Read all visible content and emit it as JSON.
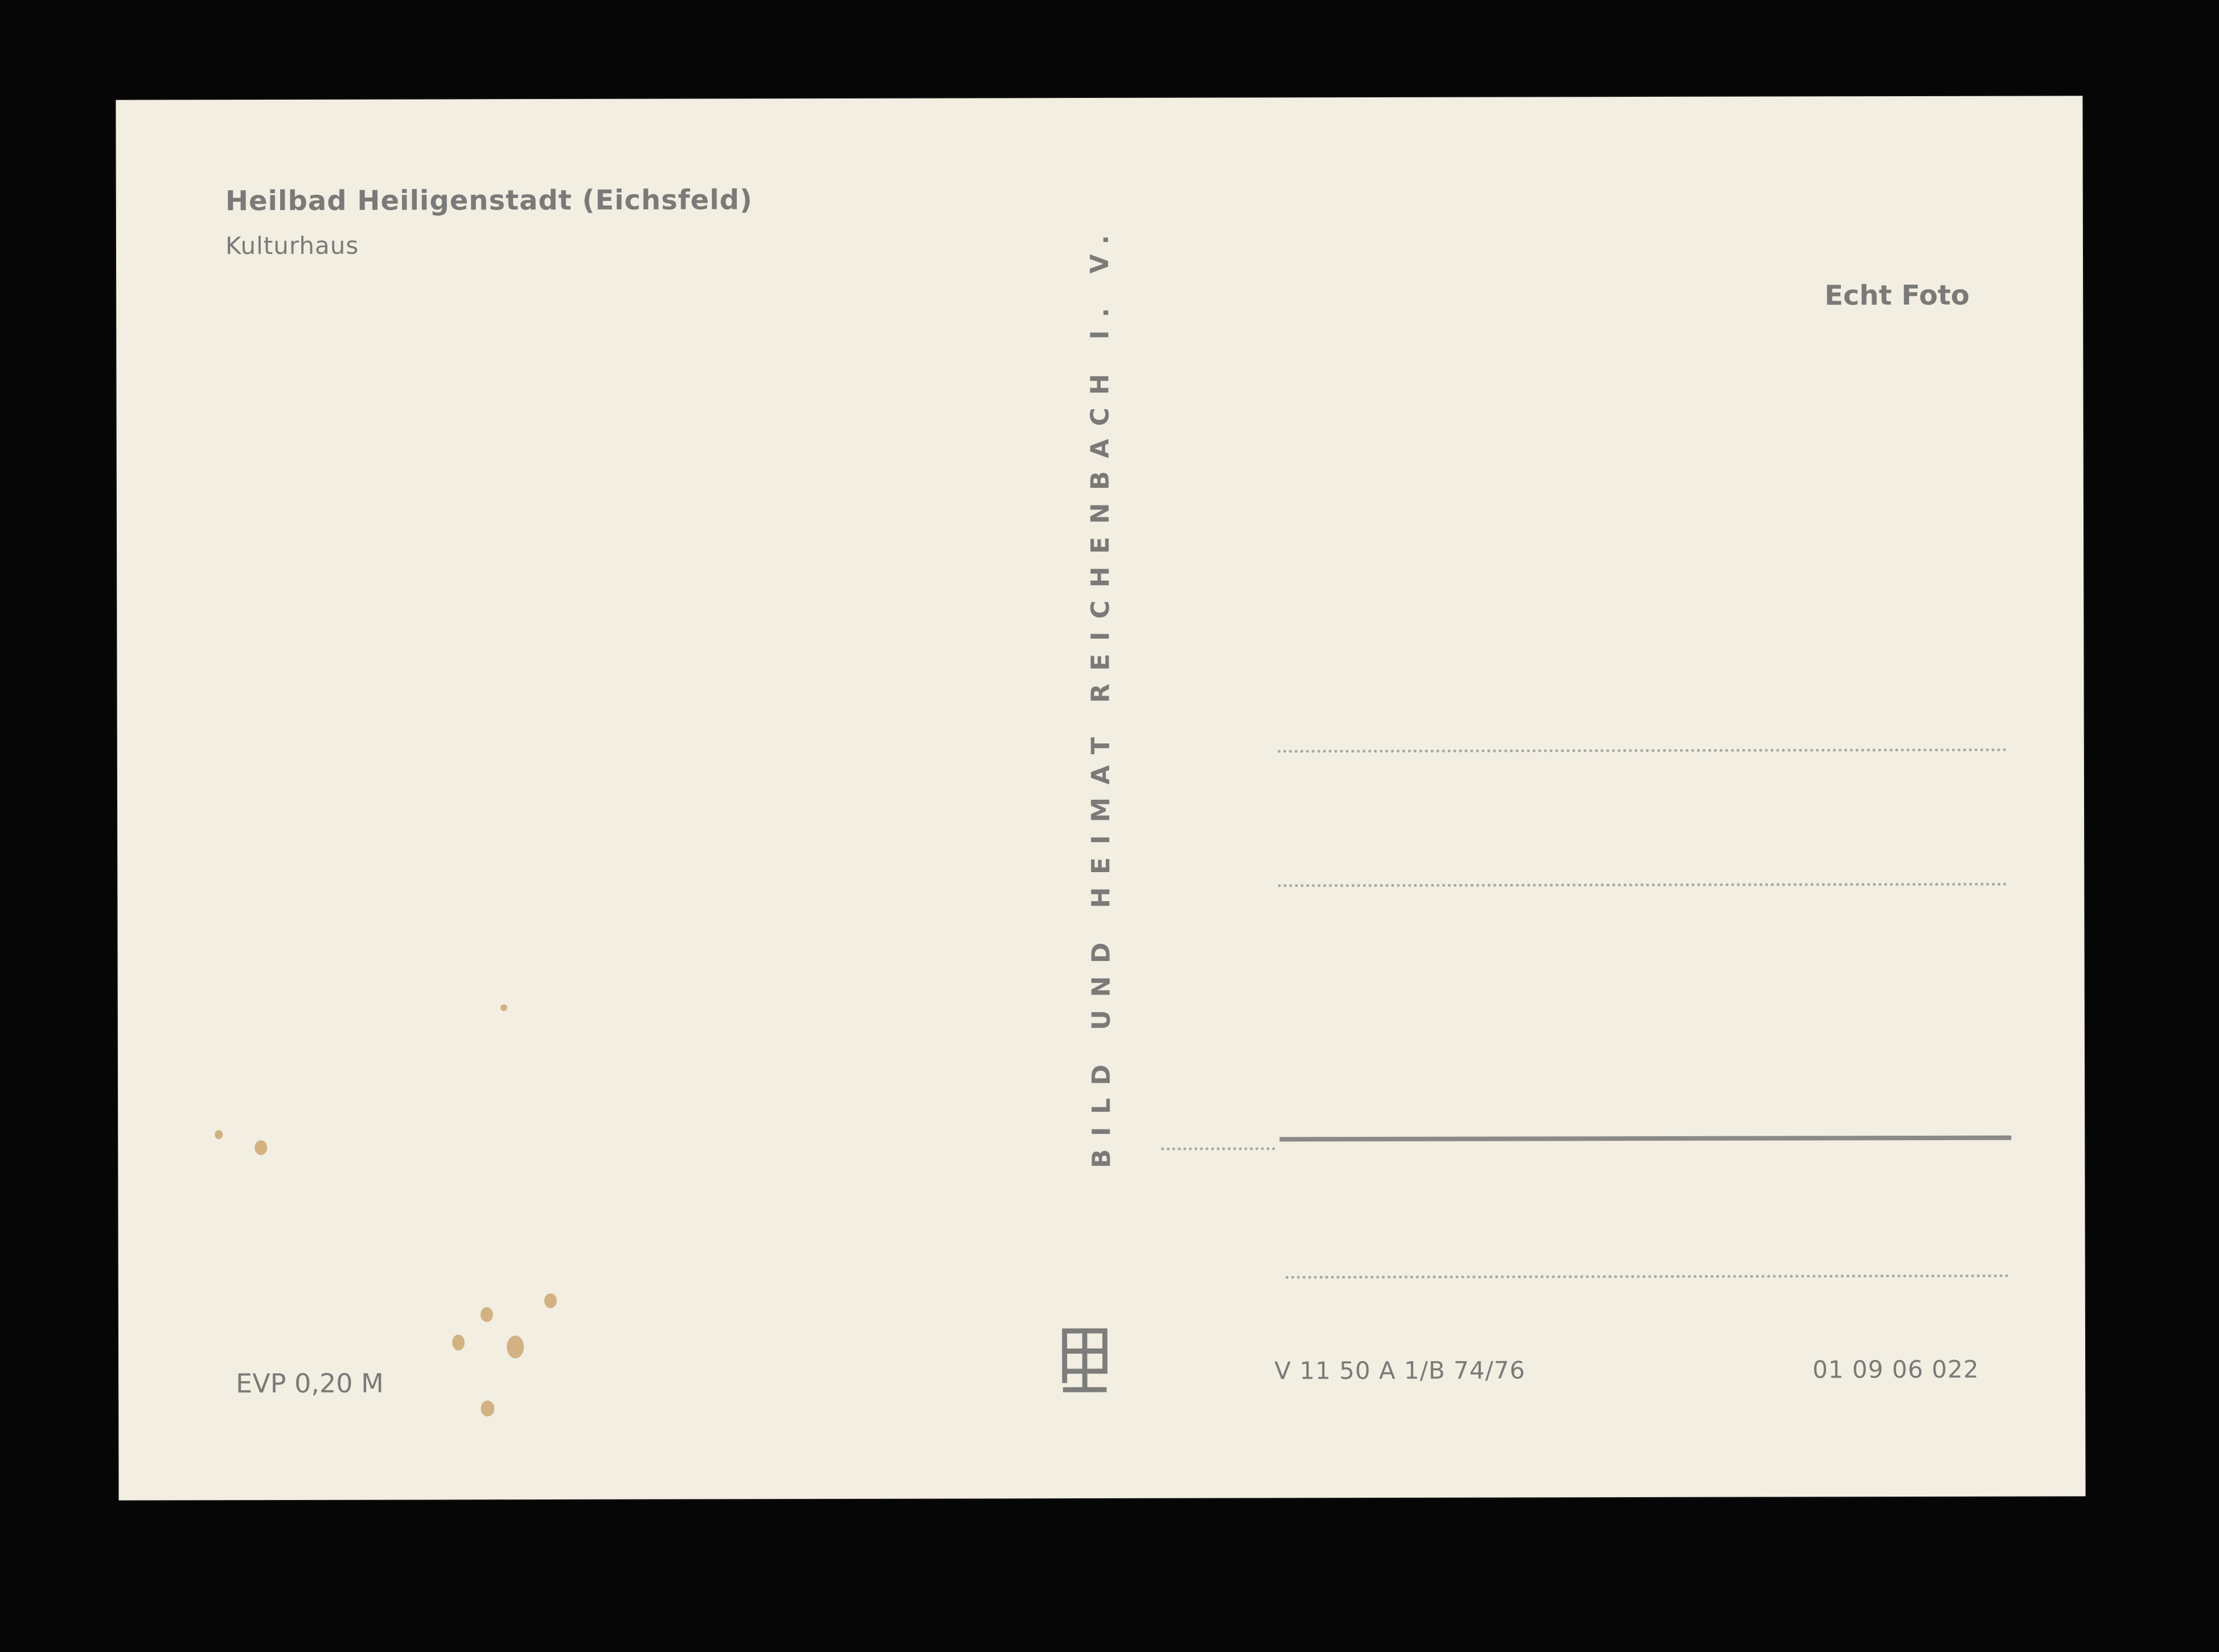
{
  "card": {
    "title": "Heilbad Heiligenstadt (Eichsfeld)",
    "subtitle": "Kulturhaus",
    "photo_label": "Echt Foto",
    "publisher": "BILD UND HEIMAT REICHENBACH I. V.",
    "price": "EVP 0,20 M",
    "print_code": "V 11 50 A 1/B 74/76",
    "catalog_number": "01 09 06 022",
    "publisher_logo": "bild-und-heimat-logo"
  },
  "colors": {
    "paper": "#f2eee2",
    "ink": "#7a7a78",
    "background": "#060606"
  }
}
